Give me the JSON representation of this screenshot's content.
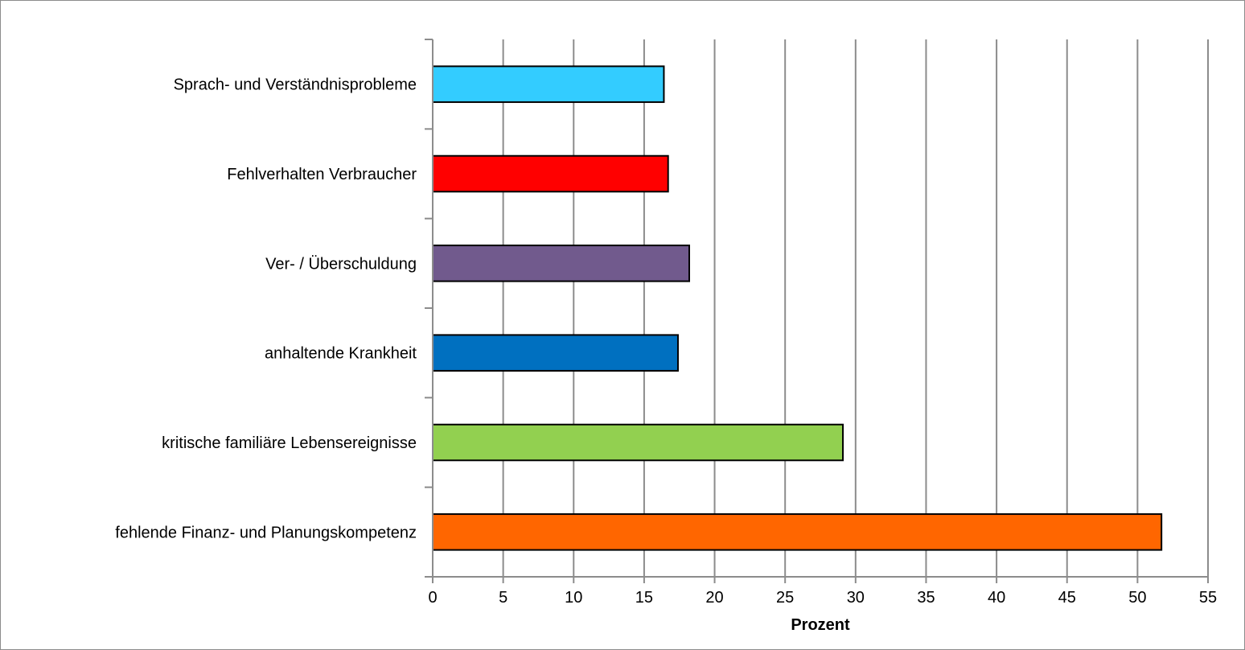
{
  "chart_data": {
    "type": "bar",
    "orientation": "horizontal",
    "categories": [
      "Sprach- und Verständnisprobleme",
      "Fehlverhalten Verbraucher",
      "Ver- / Überschuldung",
      "anhaltende Krankheit",
      "kritische familiäre Lebensereignisse",
      "fehlende Finanz- und Planungskompetenz"
    ],
    "values": [
      16.4,
      16.7,
      18.2,
      17.4,
      29.1,
      51.7
    ],
    "colors": [
      "#33CCFF",
      "#FF0000",
      "#715A8D",
      "#0070C0",
      "#92D050",
      "#FF6600"
    ],
    "xlabel": "Prozent",
    "ylabel": "",
    "title": "",
    "xlim": [
      0,
      55
    ],
    "xticks": [
      "0",
      "5",
      "10",
      "15",
      "20",
      "25",
      "30",
      "35",
      "40",
      "45",
      "50",
      "55"
    ],
    "grid": "vertical",
    "legend": "none"
  }
}
